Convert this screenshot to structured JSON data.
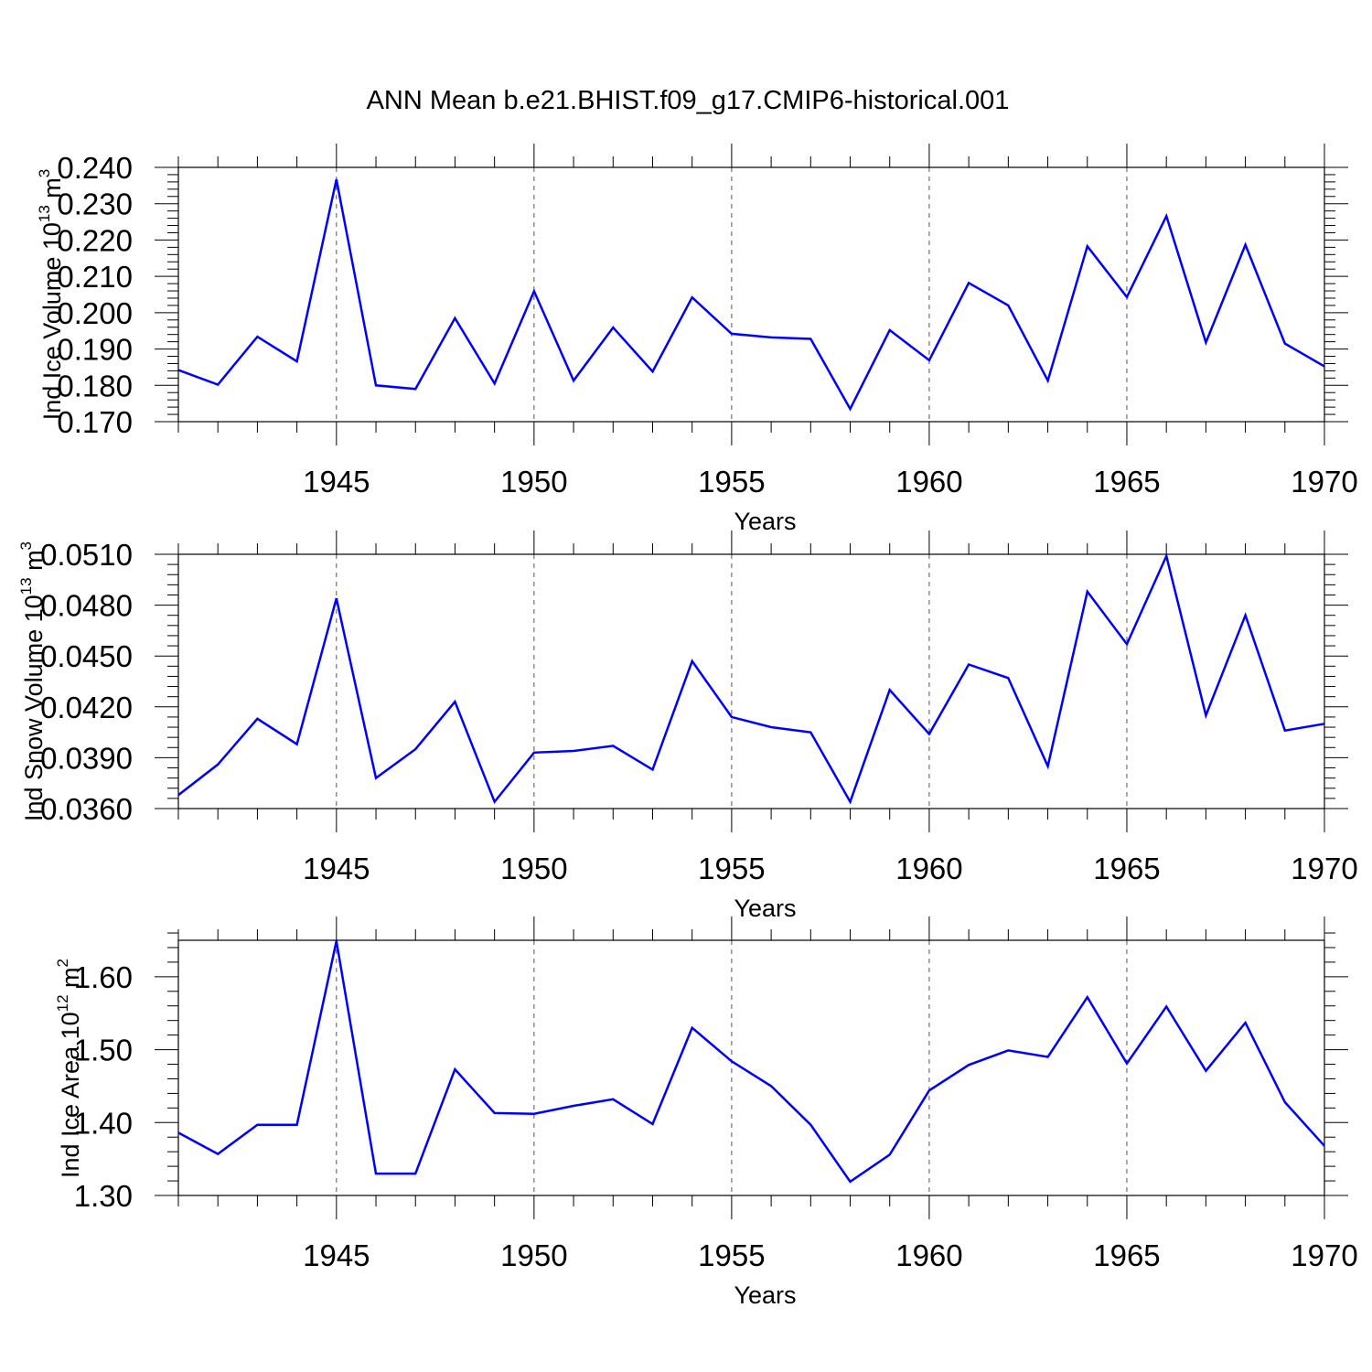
{
  "chart_data": [
    {
      "type": "line",
      "title": "ANN Mean b.e21.BHIST.f09_g17.CMIP6-historical.001",
      "xlabel": "Years",
      "ylabel": "Ind Ice Volume",
      "ylabel_base": "10",
      "ylabel_exp": "13",
      "ylabel_unit": "m",
      "ylabel_unit_exp": "3",
      "xlim": [
        1941,
        1970
      ],
      "ylim": [
        0.17,
        0.24
      ],
      "y_ticks": [
        0.17,
        0.18,
        0.19,
        0.2,
        0.21,
        0.22,
        0.23,
        0.24
      ],
      "y_tick_labels": [
        "0.170",
        "0.180",
        "0.190",
        "0.200",
        "0.210",
        "0.220",
        "0.230",
        "0.240"
      ],
      "x_ticks": [
        1945,
        1950,
        1955,
        1960,
        1965,
        1970
      ],
      "x_tick_labels": [
        "1945",
        "1950",
        "1955",
        "1960",
        "1965",
        "1970"
      ],
      "grid": "dashed vertical at major x ticks",
      "line_color": "#0000ff",
      "x": [
        1941,
        1942,
        1943,
        1944,
        1945,
        1946,
        1947,
        1948,
        1949,
        1950,
        1951,
        1952,
        1953,
        1954,
        1955,
        1956,
        1957,
        1958,
        1959,
        1960,
        1961,
        1962,
        1963,
        1964,
        1965,
        1966,
        1967,
        1968,
        1969,
        1970
      ],
      "values": [
        0.1842,
        0.1802,
        0.1934,
        0.1866,
        0.2367,
        0.18,
        0.179,
        0.1985,
        0.1805,
        0.2059,
        0.1813,
        0.1959,
        0.1838,
        0.2042,
        0.1942,
        0.1932,
        0.1928,
        0.1735,
        0.1952,
        0.1869,
        0.2082,
        0.202,
        0.1813,
        0.2183,
        0.2043,
        0.2266,
        0.1918,
        0.2187,
        0.1915,
        0.1852
      ]
    },
    {
      "type": "line",
      "xlabel": "Years",
      "ylabel": "Ind Snow Volume",
      "ylabel_base": "10",
      "ylabel_exp": "13",
      "ylabel_unit": "m",
      "ylabel_unit_exp": "3",
      "xlim": [
        1941,
        1970
      ],
      "ylim": [
        0.036,
        0.051
      ],
      "y_ticks": [
        0.036,
        0.039,
        0.042,
        0.045,
        0.048,
        0.051
      ],
      "y_tick_labels": [
        "0.0360",
        "0.0390",
        "0.0420",
        "0.0450",
        "0.0480",
        "0.0510"
      ],
      "x_ticks": [
        1945,
        1950,
        1955,
        1960,
        1965,
        1970
      ],
      "x_tick_labels": [
        "1945",
        "1950",
        "1955",
        "1960",
        "1965",
        "1970"
      ],
      "grid": "dashed vertical at major x ticks",
      "line_color": "#0000ff",
      "x": [
        1941,
        1942,
        1943,
        1944,
        1945,
        1946,
        1947,
        1948,
        1949,
        1950,
        1951,
        1952,
        1953,
        1954,
        1955,
        1956,
        1957,
        1958,
        1959,
        1960,
        1961,
        1962,
        1963,
        1964,
        1965,
        1966,
        1967,
        1968,
        1969,
        1970
      ],
      "values": [
        0.0368,
        0.0386,
        0.0413,
        0.0398,
        0.0484,
        0.0378,
        0.0395,
        0.0423,
        0.0364,
        0.0393,
        0.0394,
        0.0397,
        0.0383,
        0.0447,
        0.0414,
        0.0408,
        0.0405,
        0.0364,
        0.043,
        0.0404,
        0.0445,
        0.0437,
        0.0385,
        0.0488,
        0.0457,
        0.0509,
        0.0415,
        0.0474,
        0.0406,
        0.041
      ]
    },
    {
      "type": "line",
      "xlabel": "Years",
      "ylabel": "Ind Ice Area",
      "ylabel_base": "10",
      "ylabel_exp": "12",
      "ylabel_unit": "m",
      "ylabel_unit_exp": "2",
      "xlim": [
        1941,
        1970
      ],
      "ylim": [
        1.3,
        1.65
      ],
      "y_ticks": [
        1.3,
        1.4,
        1.5,
        1.6
      ],
      "y_tick_labels": [
        "1.30",
        "1.40",
        "1.50",
        "1.60"
      ],
      "x_ticks": [
        1945,
        1950,
        1955,
        1960,
        1965,
        1970
      ],
      "x_tick_labels": [
        "1945",
        "1950",
        "1955",
        "1960",
        "1965",
        "1970"
      ],
      "grid": "dashed vertical at major x ticks",
      "line_color": "#0000ff",
      "x": [
        1941,
        1942,
        1943,
        1944,
        1945,
        1946,
        1947,
        1948,
        1949,
        1950,
        1951,
        1952,
        1953,
        1954,
        1955,
        1956,
        1957,
        1958,
        1959,
        1960,
        1961,
        1962,
        1963,
        1964,
        1965,
        1966,
        1967,
        1968,
        1969,
        1970
      ],
      "values": [
        1.386,
        1.357,
        1.397,
        1.397,
        1.649,
        1.33,
        1.33,
        1.473,
        1.413,
        1.412,
        1.423,
        1.432,
        1.398,
        1.53,
        1.484,
        1.45,
        1.397,
        1.319,
        1.356,
        1.444,
        1.479,
        1.499,
        1.49,
        1.572,
        1.481,
        1.559,
        1.471,
        1.537,
        1.428,
        1.368
      ]
    }
  ]
}
